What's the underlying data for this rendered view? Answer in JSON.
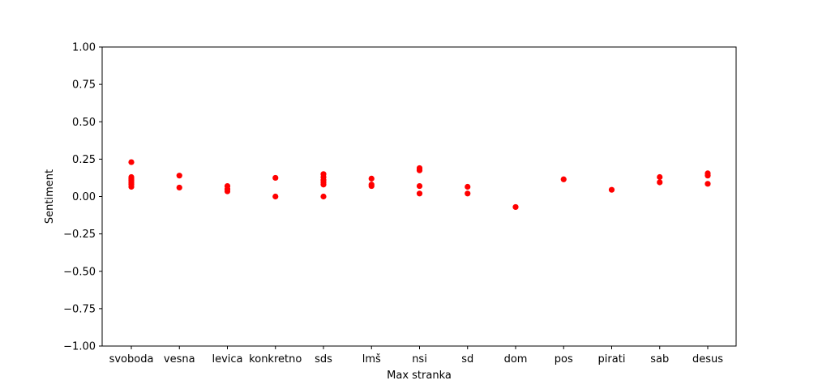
{
  "chart_data": {
    "type": "scatter",
    "xlabel": "Max stranka",
    "ylabel": "Sentiment",
    "ylim": [
      -1.0,
      1.0
    ],
    "yticks": [
      "−1.00",
      "−0.75",
      "−0.50",
      "−0.25",
      "0.00",
      "0.25",
      "0.50",
      "0.75",
      "1.00"
    ],
    "ytick_values": [
      -1.0,
      -0.75,
      -0.5,
      -0.25,
      0.0,
      0.25,
      0.5,
      0.75,
      1.0
    ],
    "categories": [
      "svoboda",
      "vesna",
      "levica",
      "konkretno",
      "sds",
      "lmš",
      "nsi",
      "sd",
      "dom",
      "pos",
      "pirati",
      "sab",
      "desus"
    ],
    "marker_color": "#ff0000",
    "grid": false,
    "points": [
      {
        "x": "svoboda",
        "y": 0.23
      },
      {
        "x": "svoboda",
        "y": 0.13
      },
      {
        "x": "svoboda",
        "y": 0.12
      },
      {
        "x": "svoboda",
        "y": 0.11
      },
      {
        "x": "svoboda",
        "y": 0.1
      },
      {
        "x": "svoboda",
        "y": 0.09
      },
      {
        "x": "svoboda",
        "y": 0.08
      },
      {
        "x": "svoboda",
        "y": 0.065
      },
      {
        "x": "vesna",
        "y": 0.14
      },
      {
        "x": "vesna",
        "y": 0.06
      },
      {
        "x": "levica",
        "y": 0.07
      },
      {
        "x": "levica",
        "y": 0.05
      },
      {
        "x": "levica",
        "y": 0.035
      },
      {
        "x": "konkretno",
        "y": 0.125
      },
      {
        "x": "konkretno",
        "y": 0.0
      },
      {
        "x": "sds",
        "y": 0.15
      },
      {
        "x": "sds",
        "y": 0.13
      },
      {
        "x": "sds",
        "y": 0.11
      },
      {
        "x": "sds",
        "y": 0.095
      },
      {
        "x": "sds",
        "y": 0.08
      },
      {
        "x": "sds",
        "y": 0.0
      },
      {
        "x": "lmš",
        "y": 0.12
      },
      {
        "x": "lmš",
        "y": 0.08
      },
      {
        "x": "lmš",
        "y": 0.07
      },
      {
        "x": "nsi",
        "y": 0.19
      },
      {
        "x": "nsi",
        "y": 0.175
      },
      {
        "x": "nsi",
        "y": 0.07
      },
      {
        "x": "nsi",
        "y": 0.02
      },
      {
        "x": "sd",
        "y": 0.065
      },
      {
        "x": "sd",
        "y": 0.02
      },
      {
        "x": "dom",
        "y": -0.07
      },
      {
        "x": "pos",
        "y": 0.115
      },
      {
        "x": "pirati",
        "y": 0.045
      },
      {
        "x": "sab",
        "y": 0.13
      },
      {
        "x": "sab",
        "y": 0.095
      },
      {
        "x": "desus",
        "y": 0.155
      },
      {
        "x": "desus",
        "y": 0.14
      },
      {
        "x": "desus",
        "y": 0.085
      }
    ]
  }
}
